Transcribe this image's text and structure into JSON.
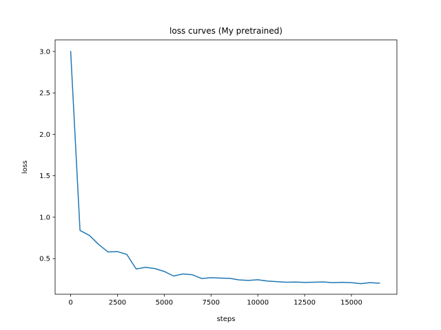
{
  "chart_data": {
    "type": "line",
    "title": "loss curves (My pretrained)",
    "xlabel": "steps",
    "ylabel": "loss",
    "xlim": [
      -830,
      17430
    ],
    "ylim": [
      0.07,
      3.14
    ],
    "xticks": [
      0,
      2500,
      5000,
      7500,
      10000,
      12500,
      15000
    ],
    "xtick_labels": [
      "0",
      "2500",
      "5000",
      "7500",
      "10000",
      "12500",
      "15000"
    ],
    "yticks": [
      0.5,
      1.0,
      1.5,
      2.0,
      2.5,
      3.0
    ],
    "ytick_labels": [
      "0.5",
      "1.0",
      "1.5",
      "2.0",
      "2.5",
      "3.0"
    ],
    "grid": false,
    "series": [
      {
        "color": "#1f77b4",
        "x": [
          0,
          500,
          1000,
          1500,
          2000,
          2500,
          3000,
          3500,
          4000,
          4500,
          5000,
          5500,
          6000,
          6500,
          7000,
          7500,
          8000,
          8500,
          9000,
          9500,
          10000,
          10500,
          11000,
          11500,
          12000,
          12500,
          13000,
          13500,
          14000,
          14500,
          15000,
          15500,
          16000,
          16500
        ],
        "y": [
          3.0,
          0.84,
          0.78,
          0.67,
          0.58,
          0.585,
          0.55,
          0.375,
          0.395,
          0.38,
          0.345,
          0.29,
          0.315,
          0.305,
          0.26,
          0.27,
          0.265,
          0.262,
          0.243,
          0.237,
          0.245,
          0.23,
          0.222,
          0.215,
          0.217,
          0.213,
          0.215,
          0.218,
          0.21,
          0.214,
          0.21,
          0.198,
          0.21,
          0.203
        ]
      }
    ]
  }
}
